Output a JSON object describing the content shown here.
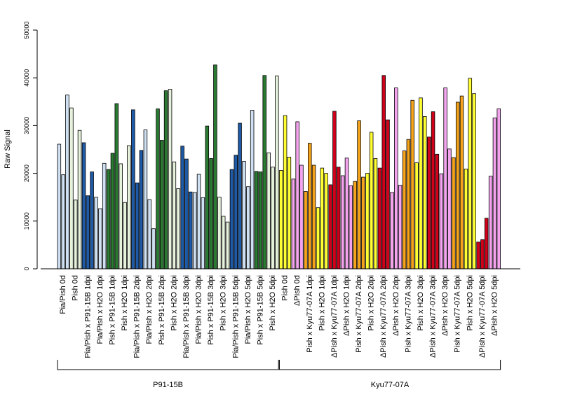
{
  "chart_data": {
    "type": "bar",
    "ylabel": "Raw Signal",
    "ylim": [
      0,
      50000
    ],
    "yticks": [
      0,
      10000,
      20000,
      30000,
      40000,
      50000
    ],
    "colors": {
      "light_blue": "#cfe0f2",
      "dark_blue": "#1f5aa6",
      "light_green": "#e6f2dc",
      "dark_green": "#2a7a32",
      "yellow": "#ffff33",
      "pink": "#f4a4ee",
      "orange": "#f5a31b",
      "red": "#d0021b"
    },
    "categories": [
      {
        "label": "Pia/Pish 0d",
        "color": "light_blue",
        "values": [
          26100,
          19700,
          36400
        ]
      },
      {
        "label": "Pish 0d",
        "color": "light_green",
        "values": [
          33700,
          14400,
          29000
        ]
      },
      {
        "label": "Pia/Pish x P91-15B 1dpi",
        "color": "dark_blue",
        "values": [
          26400,
          15300,
          20300
        ]
      },
      {
        "label": "Pia/Pish x H2O 1dpi",
        "color": "light_blue",
        "values": [
          15000,
          12600,
          22100
        ]
      },
      {
        "label": "Pish x P91-15B 1dpi",
        "color": "dark_green",
        "values": [
          20800,
          24200,
          34600
        ]
      },
      {
        "label": "Pish x H2O 1dpi",
        "color": "light_green",
        "values": [
          22000,
          13900,
          25800
        ]
      },
      {
        "label": "Pia/Pish x P91-15B 2dpi",
        "color": "dark_blue",
        "values": [
          33300,
          18000,
          24800
        ]
      },
      {
        "label": "Pia/Pish x H2O 2dpi",
        "color": "light_blue",
        "values": [
          29100,
          14500,
          8400
        ]
      },
      {
        "label": "Pish x P91-15B 2dpi",
        "color": "dark_green",
        "values": [
          33500,
          26900,
          37300
        ]
      },
      {
        "label": "Pish x H2O 2dpi",
        "color": "light_green",
        "values": [
          37600,
          22400,
          16800
        ]
      },
      {
        "label": "Pia/Pish x P91-15B 3dpi",
        "color": "dark_blue",
        "values": [
          25700,
          23000,
          16100
        ]
      },
      {
        "label": "Pia/Pish x H2O 3dpi",
        "color": "light_blue",
        "values": [
          16000,
          19800,
          14900
        ]
      },
      {
        "label": "Pish x P91-15B 3dpi",
        "color": "dark_green",
        "values": [
          29900,
          23100,
          42700
        ]
      },
      {
        "label": "Pish x H2O 3dpi",
        "color": "light_green",
        "values": [
          15000,
          11000,
          9800
        ]
      },
      {
        "label": "Pia/Pish x P91-15B 5dpi",
        "color": "dark_blue",
        "values": [
          20800,
          23800,
          30500
        ]
      },
      {
        "label": "Pia/Pish x H2O 5dpi",
        "color": "light_blue",
        "values": [
          22500,
          17200,
          33200
        ]
      },
      {
        "label": "Pish x P91-15B 5dpi",
        "color": "dark_green",
        "values": [
          20400,
          20300,
          40500
        ]
      },
      {
        "label": "Pish x H2O 5dpi",
        "color": "light_green",
        "values": [
          24300,
          21300,
          40400
        ]
      },
      {
        "label": "Pish 0d",
        "color": "yellow",
        "values": [
          20600,
          32100,
          23400
        ]
      },
      {
        "label": "ΔPish 0d",
        "color": "pink",
        "values": [
          18800,
          30800,
          21700
        ]
      },
      {
        "label": "Pish x Kyu77-07A 1dpi",
        "color": "orange",
        "values": [
          16200,
          26300,
          21700
        ]
      },
      {
        "label": "Pish x H2O 1dpi",
        "color": "yellow",
        "values": [
          12800,
          21100,
          20000
        ]
      },
      {
        "label": "ΔPish x Kyu77-07A 1dpi",
        "color": "red",
        "values": [
          17600,
          33000,
          21300
        ]
      },
      {
        "label": "ΔPish x H2O 1dpi",
        "color": "pink",
        "values": [
          19500,
          23200,
          17400
        ]
      },
      {
        "label": "Pish x Kyu77-07A 2dpi",
        "color": "orange",
        "values": [
          18300,
          31000,
          19200
        ]
      },
      {
        "label": "Pish x H2O 2dpi",
        "color": "yellow",
        "values": [
          20000,
          28600,
          23100
        ]
      },
      {
        "label": "ΔPish x Kyu77-07A 2dpi",
        "color": "red",
        "values": [
          21100,
          40500,
          31200
        ]
      },
      {
        "label": "ΔPish x H2O 2dpi",
        "color": "pink",
        "values": [
          16000,
          37900,
          17500
        ]
      },
      {
        "label": "Pish x Kyu77-07A 3dpi",
        "color": "orange",
        "values": [
          24700,
          27100,
          35300
        ]
      },
      {
        "label": "Pish x H2O 3dpi",
        "color": "yellow",
        "values": [
          22200,
          35800,
          31900
        ]
      },
      {
        "label": "ΔPish x Kyu77-07A 3dpi",
        "color": "red",
        "values": [
          27600,
          32900,
          24000
        ]
      },
      {
        "label": "ΔPish x H2O 3dpi",
        "color": "pink",
        "values": [
          19900,
          37900,
          25100
        ]
      },
      {
        "label": "Pish x Kyu77-07A 5dpi",
        "color": "orange",
        "values": [
          23300,
          34900,
          36200
        ]
      },
      {
        "label": "Pish x H2O 5dpi",
        "color": "yellow",
        "values": [
          20900,
          39900,
          36700
        ]
      },
      {
        "label": "ΔPish x Kyu77-07A 5dpi",
        "color": "red",
        "values": [
          5600,
          6100,
          10600
        ]
      },
      {
        "label": "ΔPish x H2O 5dpi",
        "color": "pink",
        "values": [
          19400,
          31600,
          33500
        ]
      }
    ],
    "groups": [
      {
        "label": "P91-15B",
        "from": 0,
        "to": 17
      },
      {
        "label": "Kyu77-07A",
        "from": 18,
        "to": 35
      }
    ]
  }
}
